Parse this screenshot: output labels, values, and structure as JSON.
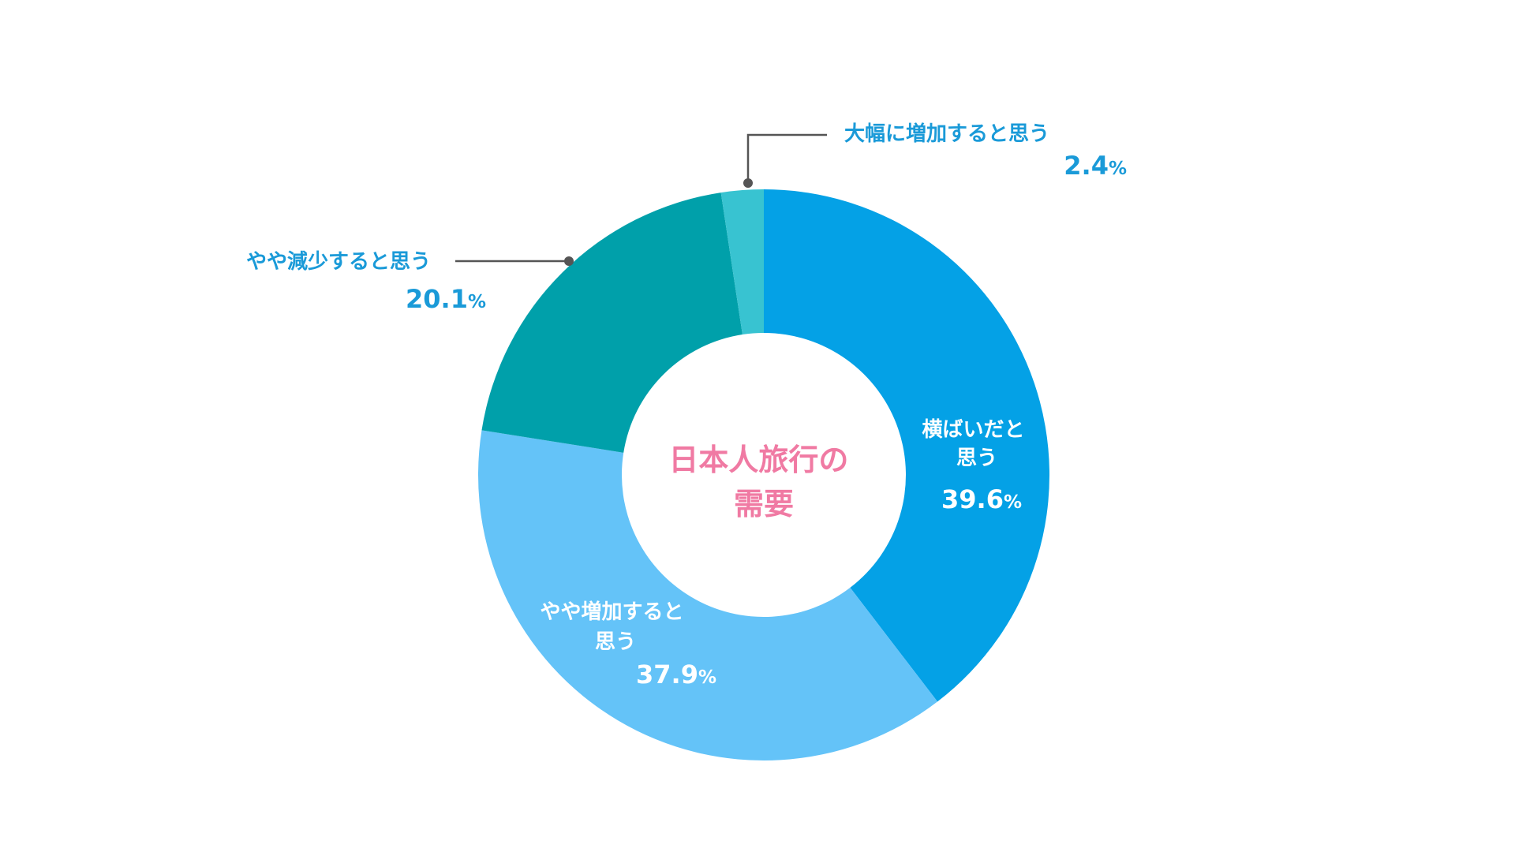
{
  "chart_data": {
    "type": "pie",
    "style": "donut",
    "center_title_lines": [
      "日本人旅行の",
      "需要"
    ],
    "unit": "%",
    "slices": [
      {
        "label": "横ばいだと思う",
        "value": 39.6,
        "value_text": "39.6",
        "color": "#04a1e6",
        "label_placement": "inside"
      },
      {
        "label": "やや増加すると思う",
        "value": 37.9,
        "value_text": "37.9",
        "color": "#64c3f8",
        "label_placement": "inside"
      },
      {
        "label": "やや減少すると思う",
        "value": 20.1,
        "value_text": "20.1",
        "color": "#00a0aa",
        "label_placement": "outside-left"
      },
      {
        "label": "大幅に増加すると思う",
        "value": 2.4,
        "value_text": "2.4",
        "color": "#38c3d1",
        "label_placement": "outside-top"
      }
    ]
  },
  "colors": {
    "center_title": "#f07aa3",
    "outside_label": "#1a9ad8",
    "leader_line": "#555555"
  }
}
